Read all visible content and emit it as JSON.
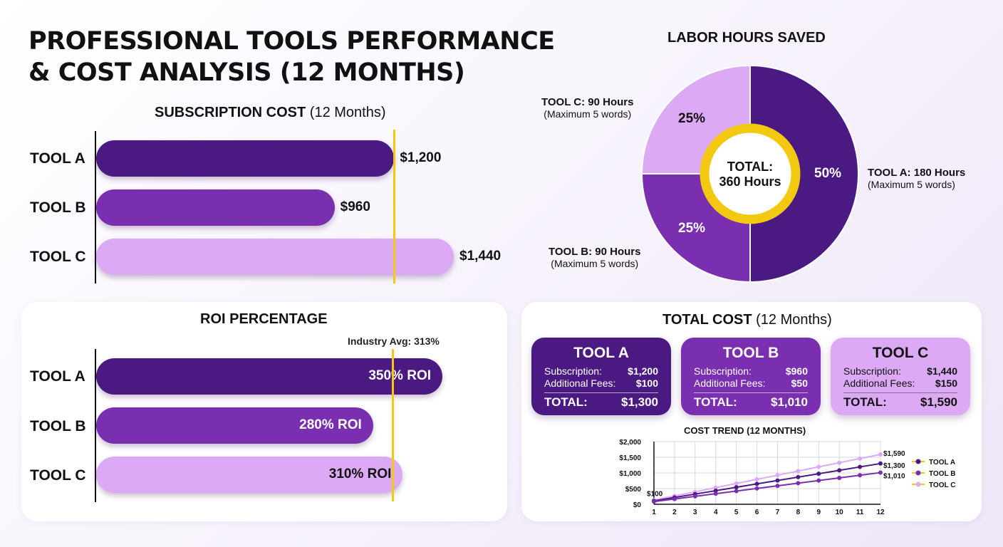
{
  "title": "PROFESSIONAL TOOLS PERFORMANCE & COST ANALYSIS (12 MONTHS)",
  "colors": {
    "tool_a": "#4a1a82",
    "tool_b": "#7a2fb0",
    "tool_c": "#dcaaf5",
    "reference": "#f2c811"
  },
  "subscription": {
    "title_bold": "SUBSCRIPTION COST",
    "title_normal": " (12 Months)",
    "tools": [
      {
        "label": "TOOL A",
        "value_text": "$1,200"
      },
      {
        "label": "TOOL B",
        "value_text": "$960"
      },
      {
        "label": "TOOL C",
        "value_text": "$1,440"
      }
    ]
  },
  "labor": {
    "title": "LABOR HOURS SAVED",
    "center_line1": "TOTAL:",
    "center_line2": "360 Hours",
    "segments": [
      {
        "percent_label": "50%",
        "callout_title": "TOOL A: 180 Hours",
        "callout_sub": "(Maximum 5 words)"
      },
      {
        "percent_label": "25%",
        "callout_title": "TOOL B: 90 Hours",
        "callout_sub": "(Maximum 5 words)"
      },
      {
        "percent_label": "25%",
        "callout_title": "TOOL C: 90 Hours",
        "callout_sub": "(Maximum 5 words)"
      }
    ]
  },
  "roi": {
    "title": "ROI PERCENTAGE",
    "reference_label": "Industry Avg: 313%",
    "tools": [
      {
        "label": "TOOL A",
        "value_text": "350% ROI"
      },
      {
        "label": "TOOL B",
        "value_text": "280% ROI"
      },
      {
        "label": "TOOL C",
        "value_text": "310% ROI"
      }
    ]
  },
  "total_cost": {
    "title_bold": "TOTAL COST",
    "title_normal": " (12 Months)",
    "cards": [
      {
        "name": "TOOL A",
        "sub_label": "Subscription:",
        "sub_value": "$1,200",
        "fee_label": "Additional Fees:",
        "fee_value": "$100",
        "total_label": "TOTAL:",
        "total_value": "$1,300"
      },
      {
        "name": "TOOL B",
        "sub_label": "Subscription:",
        "sub_value": "$960",
        "fee_label": "Additional Fees:",
        "fee_value": "$50",
        "total_label": "TOTAL:",
        "total_value": "$1,010"
      },
      {
        "name": "TOOL C",
        "sub_label": "Subscription:",
        "sub_value": "$1,440",
        "fee_label": "Additional Fees:",
        "fee_value": "$150",
        "total_label": "TOTAL:",
        "total_value": "$1,590"
      }
    ],
    "trend": {
      "title": "COST TREND (12 MONTHS)",
      "start_label": "$100",
      "end_labels": [
        "$1,590",
        "$1,300",
        "$1,010"
      ],
      "legend": [
        "TOOL A",
        "TOOL B",
        "TOOL C"
      ]
    }
  },
  "chart_data": [
    {
      "type": "bar",
      "title": "SUBSCRIPTION COST (12 Months)",
      "orientation": "horizontal",
      "categories": [
        "TOOL A",
        "TOOL B",
        "TOOL C"
      ],
      "values": [
        1200,
        960,
        1440
      ],
      "reference_value": 1200,
      "xlim": [
        0,
        1440
      ]
    },
    {
      "type": "pie",
      "title": "LABOR HOURS SAVED",
      "donut": true,
      "categories": [
        "TOOL A",
        "TOOL B",
        "TOOL C"
      ],
      "values": [
        180,
        90,
        90
      ],
      "percents": [
        50,
        25,
        25
      ],
      "total": 360
    },
    {
      "type": "bar",
      "title": "ROI PERCENTAGE",
      "orientation": "horizontal",
      "categories": [
        "TOOL A",
        "TOOL B",
        "TOOL C"
      ],
      "values": [
        350,
        280,
        310
      ],
      "reference_value": 313,
      "reference_label": "Industry Avg: 313%",
      "xlim": [
        0,
        350
      ]
    },
    {
      "type": "line",
      "title": "COST TREND (12 MONTHS)",
      "x": [
        1,
        2,
        3,
        4,
        5,
        6,
        7,
        8,
        9,
        10,
        11,
        12
      ],
      "ylim": [
        0,
        2000
      ],
      "yticks": [
        0,
        500,
        1000,
        1500,
        2000
      ],
      "ytick_labels": [
        "$0",
        "$500",
        "$1,000",
        "$1,500",
        "$2,000"
      ],
      "grid": true,
      "legend": "right",
      "series": [
        {
          "name": "TOOL A",
          "values": [
            108,
            217,
            325,
            433,
            542,
            650,
            758,
            867,
            975,
            1083,
            1192,
            1300
          ]
        },
        {
          "name": "TOOL B",
          "values": [
            84,
            168,
            253,
            337,
            421,
            505,
            589,
            673,
            758,
            842,
            926,
            1010
          ]
        },
        {
          "name": "TOOL C",
          "values": [
            133,
            265,
            398,
            530,
            663,
            795,
            928,
            1060,
            1193,
            1325,
            1458,
            1590
          ]
        }
      ]
    }
  ]
}
